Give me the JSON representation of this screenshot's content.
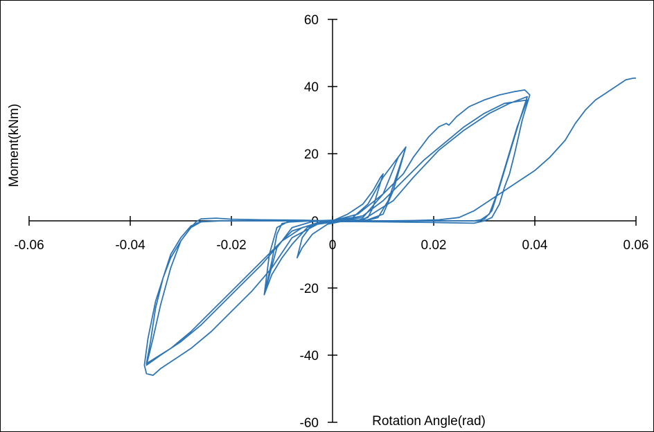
{
  "chart_data": {
    "type": "line",
    "xlabel": "Rotation Angle(rad)",
    "ylabel": "Moment(kNm)",
    "xlim": [
      -0.06,
      0.06
    ],
    "ylim": [
      -60,
      60
    ],
    "x_ticks": [
      -0.06,
      -0.04,
      -0.02,
      0,
      0.02,
      0.04,
      0.06
    ],
    "x_tick_labels": [
      "-0.06",
      "-0.04",
      "-0.02",
      "0",
      "0.02",
      "0.04",
      "0.06"
    ],
    "y_ticks": [
      -60,
      -40,
      -20,
      0,
      20,
      40,
      60
    ],
    "y_tick_labels": [
      "-60",
      "-40",
      "-20",
      "0",
      "20",
      "40",
      "60"
    ],
    "grid": false,
    "legend": "none",
    "series_color": "#2E75B6",
    "series": [
      {
        "values": [
          [
            0,
            0
          ],
          [
            0.003,
            2
          ],
          [
            0.006,
            5
          ],
          [
            0.008,
            9
          ],
          [
            0.0095,
            13
          ],
          [
            0.01,
            14
          ],
          [
            0.009,
            9
          ],
          [
            0.008,
            4
          ],
          [
            0.007,
            1
          ],
          [
            0.005,
            0.2
          ],
          [
            0.002,
            -0.1
          ],
          [
            -0.001,
            -1
          ],
          [
            -0.004,
            -4
          ],
          [
            -0.006,
            -8
          ],
          [
            -0.007,
            -11
          ],
          [
            -0.006,
            -5
          ],
          [
            -0.004,
            -1
          ],
          [
            -0.001,
            0
          ],
          [
            0.004,
            1
          ],
          [
            0.007,
            5
          ],
          [
            0.01,
            13
          ],
          [
            0.012,
            17
          ],
          [
            0.0145,
            22
          ],
          [
            0.013,
            15
          ],
          [
            0.011,
            6
          ],
          [
            0.009,
            1
          ],
          [
            0.007,
            0.2
          ],
          [
            0.003,
            0
          ],
          [
            -0.002,
            -0.3
          ],
          [
            -0.005,
            -2
          ],
          [
            -0.008,
            -7
          ],
          [
            -0.01,
            -11
          ],
          [
            -0.012,
            -16
          ],
          [
            -0.0135,
            -22
          ],
          [
            -0.012,
            -12
          ],
          [
            -0.011,
            -4
          ],
          [
            -0.01,
            -0.8
          ],
          [
            -0.008,
            -0.2
          ],
          [
            -0.004,
            0
          ],
          [
            0.002,
            0.2
          ],
          [
            0.006,
            1
          ],
          [
            0.01,
            8
          ],
          [
            0.013,
            19
          ],
          [
            0.0145,
            22
          ],
          [
            0.012,
            9
          ],
          [
            0.01,
            2
          ],
          [
            0.007,
            0.3
          ],
          [
            0,
            0
          ],
          [
            -0.004,
            -0.2
          ],
          [
            -0.008,
            -2
          ],
          [
            -0.011,
            -8
          ],
          [
            -0.0135,
            -22
          ],
          [
            -0.0125,
            -10
          ],
          [
            -0.011,
            -2
          ],
          [
            -0.009,
            -0.4
          ],
          [
            -0.004,
            0
          ],
          [
            0.006,
            0.3
          ],
          [
            0.012,
            6
          ],
          [
            0.016,
            13
          ],
          [
            0.021,
            21
          ],
          [
            0.026,
            27
          ],
          [
            0.031,
            32
          ],
          [
            0.035,
            35
          ],
          [
            0.0385,
            37
          ],
          [
            0.037,
            30
          ],
          [
            0.035,
            20
          ],
          [
            0.033,
            10
          ],
          [
            0.0315,
            3
          ],
          [
            0.03,
            0.5
          ],
          [
            0.028,
            0
          ],
          [
            0.02,
            0
          ],
          [
            0.01,
            -0.1
          ],
          [
            0.002,
            -0.1
          ],
          [
            -0.002,
            -0.3
          ],
          [
            -0.006,
            -2
          ],
          [
            -0.01,
            -6
          ],
          [
            -0.014,
            -13
          ],
          [
            -0.018,
            -19
          ],
          [
            -0.022,
            -25
          ],
          [
            -0.026,
            -31
          ],
          [
            -0.03,
            -36
          ],
          [
            -0.034,
            -40
          ],
          [
            -0.0368,
            -43
          ],
          [
            -0.0355,
            -35
          ],
          [
            -0.034,
            -25
          ],
          [
            -0.032,
            -14
          ],
          [
            -0.03,
            -6
          ],
          [
            -0.028,
            -2
          ],
          [
            -0.026,
            -0.3
          ],
          [
            -0.022,
            0
          ],
          [
            -0.012,
            0
          ],
          [
            -0.004,
            0
          ],
          [
            0.002,
            0.3
          ],
          [
            0.006,
            1.5
          ],
          [
            0.01,
            6
          ],
          [
            0.014,
            12
          ],
          [
            0.018,
            18
          ],
          [
            0.022,
            23
          ],
          [
            0.026,
            28
          ],
          [
            0.03,
            32
          ],
          [
            0.034,
            35
          ],
          [
            0.0385,
            36
          ],
          [
            0.0365,
            28
          ],
          [
            0.0345,
            18
          ],
          [
            0.0325,
            8
          ],
          [
            0.031,
            2
          ],
          [
            0.029,
            0
          ],
          [
            0.015,
            0
          ],
          [
            0.003,
            -0.1
          ],
          [
            -0.003,
            -0.6
          ],
          [
            -0.008,
            -3
          ],
          [
            -0.012,
            -9
          ],
          [
            -0.016,
            -15
          ],
          [
            -0.02,
            -21
          ],
          [
            -0.024,
            -27
          ],
          [
            -0.028,
            -33
          ],
          [
            -0.032,
            -38
          ],
          [
            -0.0368,
            -42.5
          ],
          [
            -0.036,
            -36
          ],
          [
            -0.035,
            -26
          ],
          [
            -0.0335,
            -17
          ],
          [
            -0.032,
            -10
          ],
          [
            -0.03,
            -5
          ],
          [
            -0.028,
            -1.5
          ],
          [
            -0.026,
            -0.2
          ],
          [
            -0.022,
            0
          ],
          [
            -0.01,
            0
          ],
          [
            0,
            0
          ],
          [
            0.005,
            2
          ],
          [
            0.01,
            8
          ],
          [
            0.014,
            14
          ],
          [
            0.016,
            19
          ],
          [
            0.019,
            25
          ],
          [
            0.021,
            28
          ],
          [
            0.0225,
            29
          ],
          [
            0.023,
            28.5
          ],
          [
            0.0245,
            31
          ],
          [
            0.027,
            34
          ],
          [
            0.03,
            36
          ],
          [
            0.033,
            37.5
          ],
          [
            0.036,
            38.5
          ],
          [
            0.038,
            39
          ],
          [
            0.039,
            37.5
          ],
          [
            0.0375,
            30
          ],
          [
            0.036,
            20
          ],
          [
            0.035,
            14
          ],
          [
            0.034,
            10
          ],
          [
            0.033,
            5
          ],
          [
            0.0315,
            1
          ],
          [
            0.03,
            0
          ],
          [
            0.028,
            -0.7
          ],
          [
            0.02,
            -0.5
          ],
          [
            0.01,
            -0.3
          ],
          [
            0.001,
            -0.2
          ],
          [
            -0.003,
            -1
          ],
          [
            -0.008,
            -5
          ],
          [
            -0.012,
            -14
          ],
          [
            -0.016,
            -21
          ],
          [
            -0.02,
            -27
          ],
          [
            -0.024,
            -33
          ],
          [
            -0.028,
            -38
          ],
          [
            -0.031,
            -41
          ],
          [
            -0.034,
            -44
          ],
          [
            -0.0355,
            -46
          ],
          [
            -0.0368,
            -45.5
          ],
          [
            -0.0372,
            -43
          ],
          [
            -0.0365,
            -35
          ],
          [
            -0.035,
            -24
          ],
          [
            -0.0335,
            -17
          ],
          [
            -0.032,
            -11
          ],
          [
            -0.03,
            -6
          ],
          [
            -0.028,
            -2
          ],
          [
            -0.027,
            -0.3
          ],
          [
            -0.026,
            0.6
          ],
          [
            -0.023,
            0.8
          ],
          [
            -0.02,
            0.5
          ],
          [
            -0.014,
            0.3
          ],
          [
            -0.006,
            0.2
          ],
          [
            0,
            0
          ],
          [
            0.004,
            0
          ],
          [
            0.01,
            0
          ],
          [
            0.016,
            0.1
          ],
          [
            0.021,
            0.3
          ],
          [
            0.025,
            1
          ],
          [
            0.028,
            3
          ],
          [
            0.031,
            6
          ],
          [
            0.034,
            9
          ],
          [
            0.037,
            12
          ],
          [
            0.04,
            15
          ],
          [
            0.043,
            19
          ],
          [
            0.046,
            24
          ],
          [
            0.048,
            29
          ],
          [
            0.05,
            33
          ],
          [
            0.052,
            36
          ],
          [
            0.054,
            38
          ],
          [
            0.056,
            40
          ],
          [
            0.058,
            42
          ],
          [
            0.0595,
            42.5
          ],
          [
            0.06,
            42.5
          ]
        ]
      }
    ]
  }
}
